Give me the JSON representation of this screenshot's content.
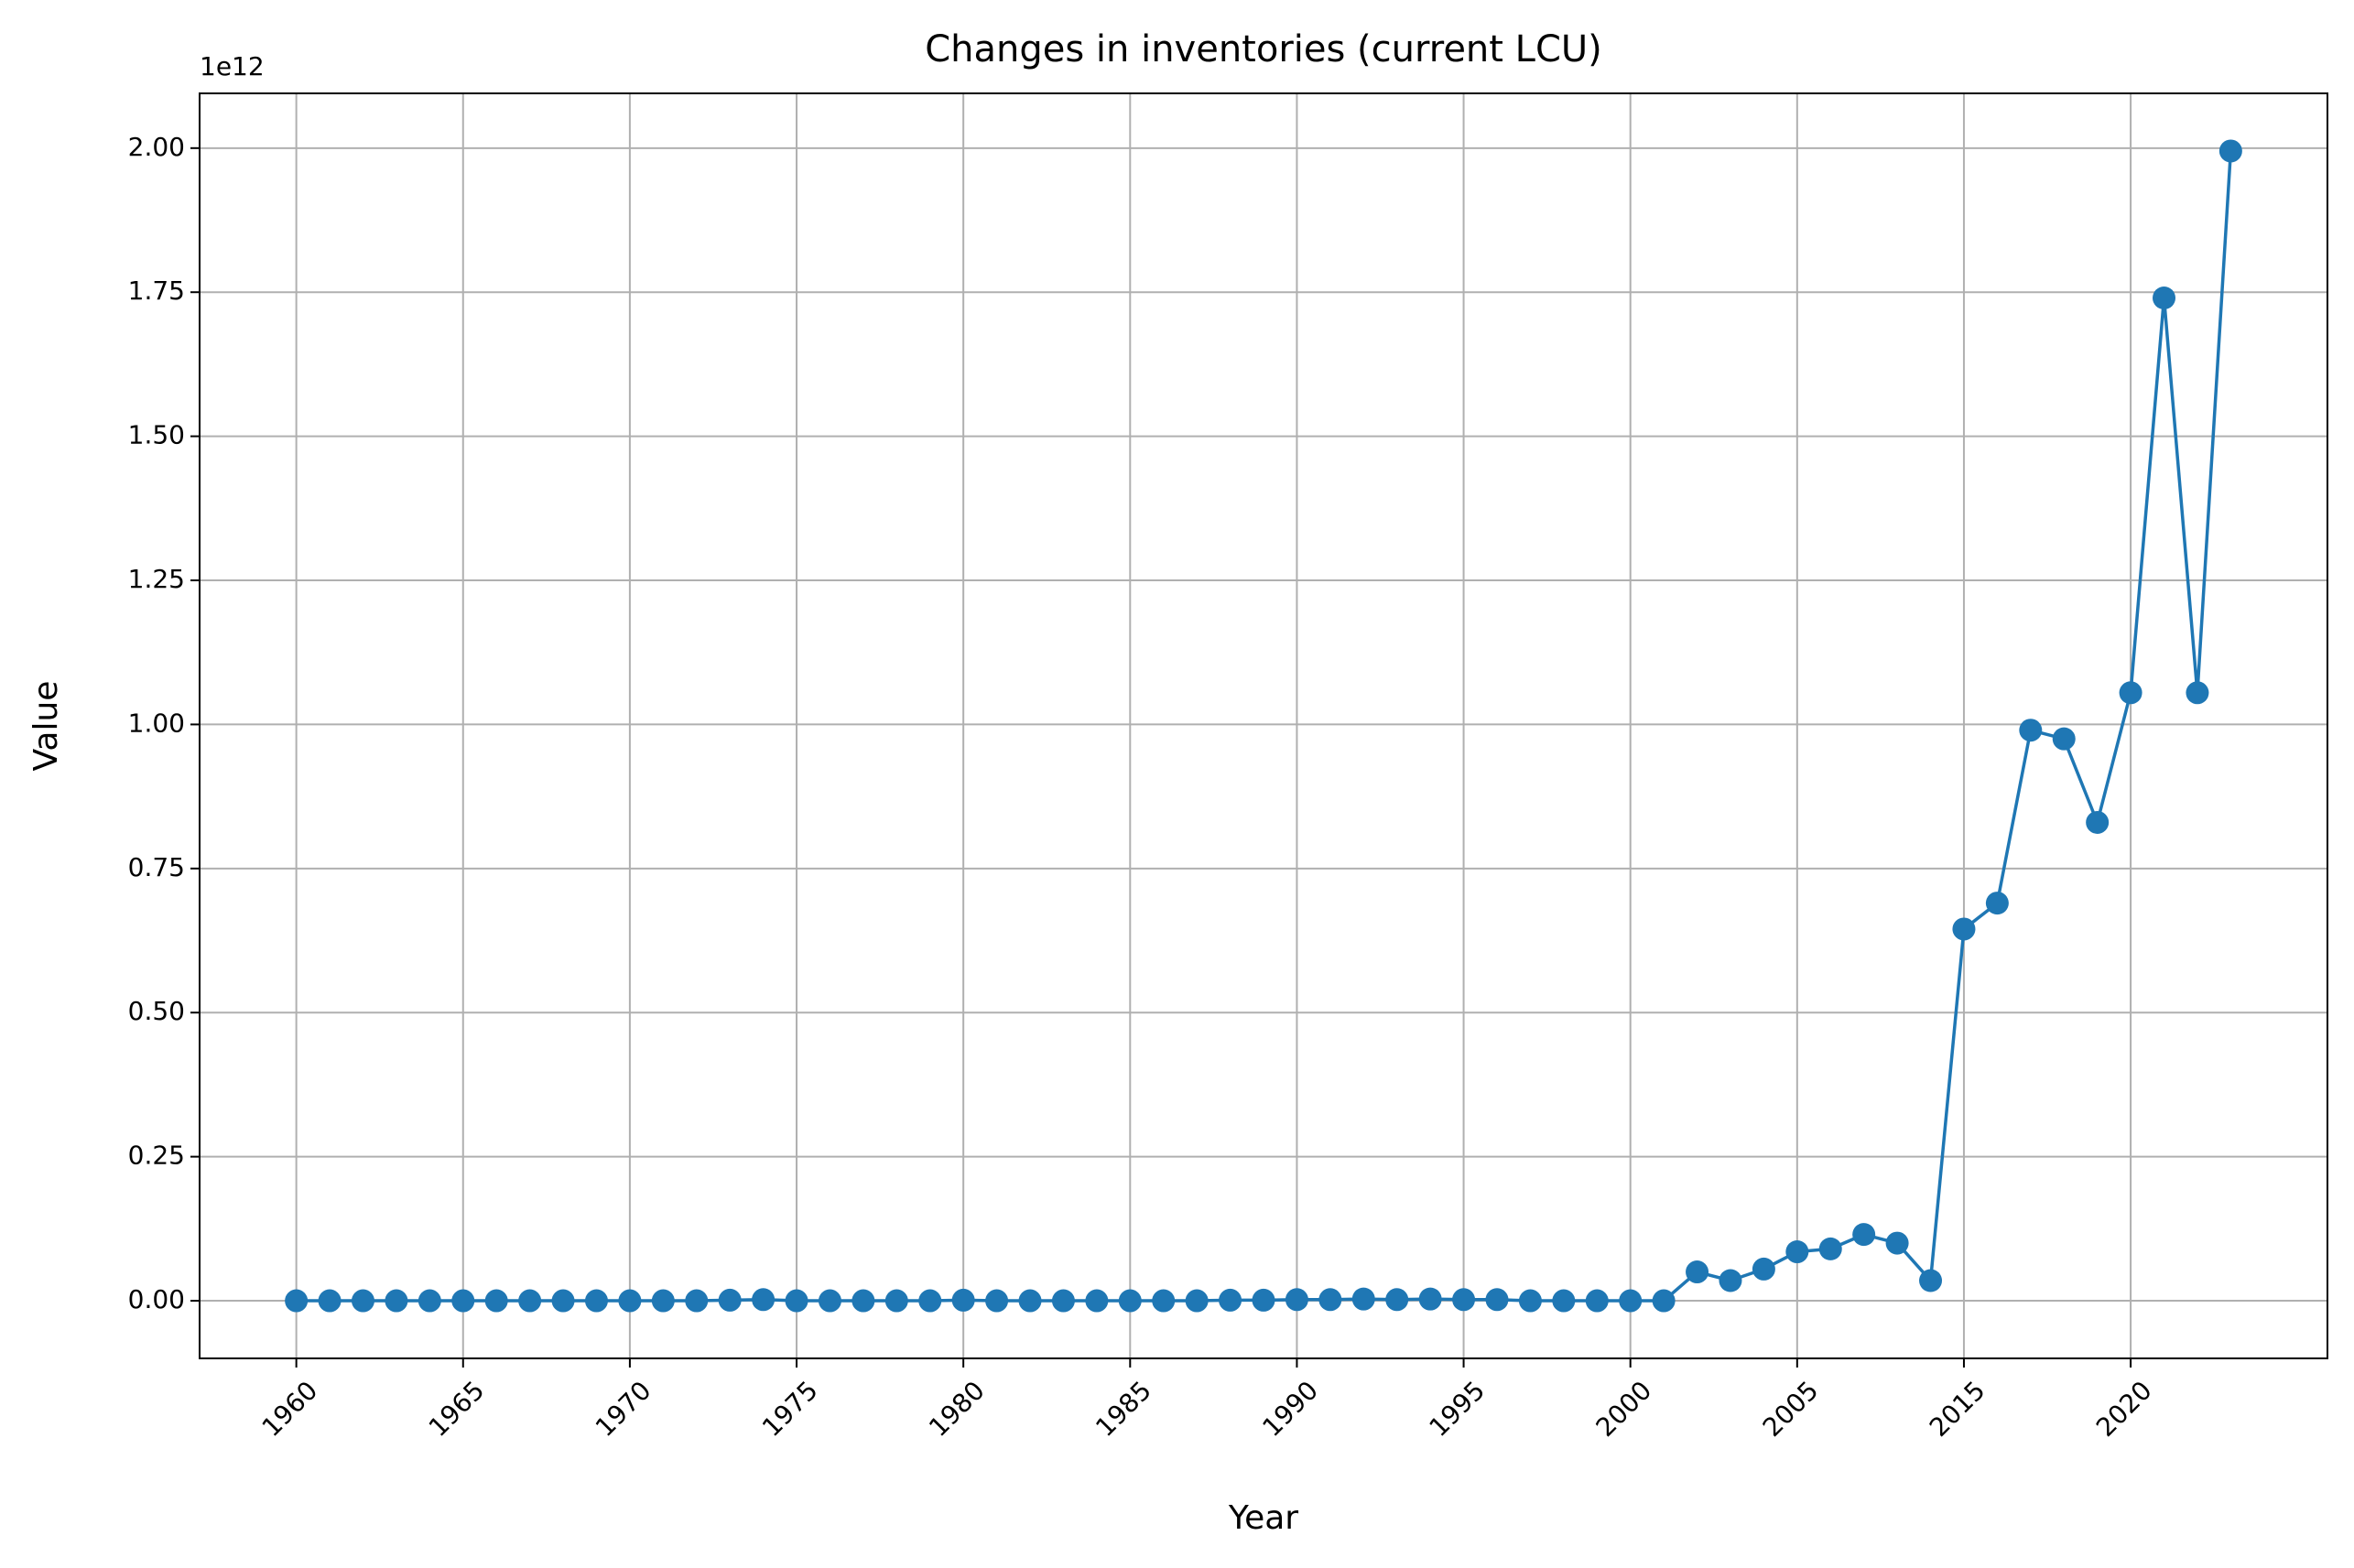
{
  "chart_data": {
    "type": "line",
    "title": "Changes in inventories (current LCU)",
    "x_label": "Year",
    "y_label": "Value",
    "offset_label": "1e12",
    "categories": [
      "1960",
      null,
      null,
      null,
      null,
      "1965",
      null,
      null,
      null,
      null,
      "1970",
      null,
      null,
      null,
      null,
      "1975",
      null,
      null,
      null,
      null,
      "1980",
      null,
      null,
      null,
      null,
      "1985",
      null,
      null,
      null,
      null,
      "1990",
      null,
      null,
      null,
      null,
      "1995",
      null,
      null,
      null,
      null,
      "2000",
      null,
      null,
      null,
      null,
      "2005",
      null,
      null,
      null,
      null,
      "2015",
      null,
      null,
      null,
      null,
      "2020",
      null,
      null,
      null
    ],
    "values": [
      0,
      0,
      0,
      0,
      0,
      0,
      0,
      0,
      0,
      0,
      0,
      0,
      0,
      0.001,
      0.002,
      0,
      0,
      0,
      0,
      0,
      0.001,
      0,
      0,
      0,
      0,
      0,
      0,
      0,
      0.001,
      0.001,
      0.002,
      0.002,
      0.003,
      0.002,
      0.003,
      0.002,
      0.002,
      0,
      0,
      0,
      0,
      0,
      0.05,
      0.035,
      0.055,
      0.085,
      0.09,
      0.115,
      0.1,
      0.035,
      0.645,
      0.69,
      0.99,
      0.975,
      0.83,
      1.055,
      1.74,
      1.055,
      1.995
    ],
    "color": "#1f77b4",
    "marker": true,
    "ylim": [
      -0.1,
      2.095
    ],
    "yticks": [
      {
        "value": 0,
        "label": "0.00"
      },
      0.25,
      {
        "value": 0.5,
        "label": "0.50"
      },
      0.75,
      {
        "value": 1,
        "label": "1.00"
      },
      1.25,
      {
        "value": 1.5,
        "label": "1.50"
      },
      1.75,
      {
        "value": 2,
        "label": "2.00"
      }
    ],
    "grid": true
  }
}
